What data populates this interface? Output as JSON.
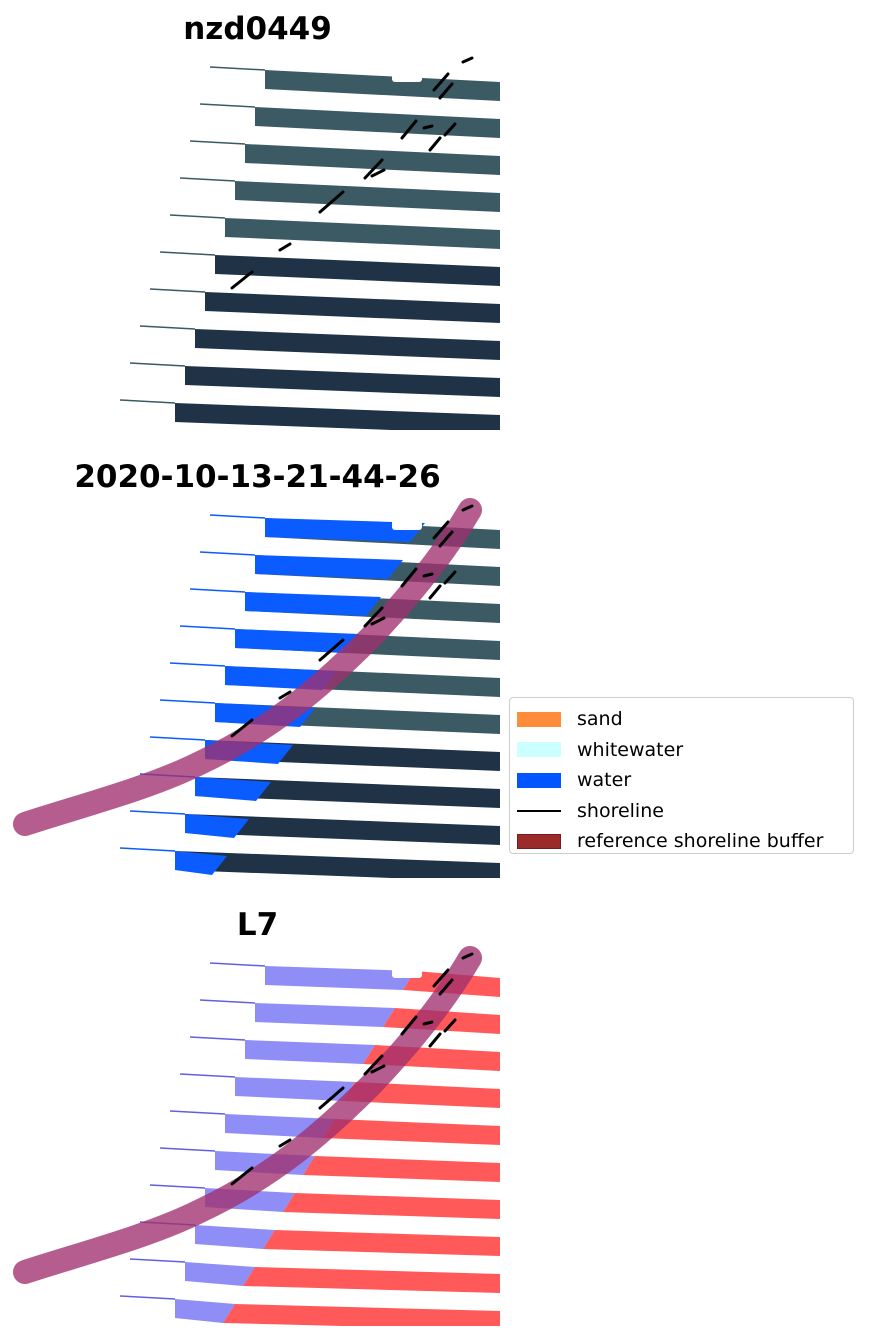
{
  "panels": [
    {
      "title": "nzd0449",
      "style": "rgb"
    },
    {
      "title": "2020-10-13-21-44-26",
      "style": "classified"
    },
    {
      "title": "L7",
      "style": "index"
    }
  ],
  "legend": {
    "items": [
      {
        "label": "sand",
        "color": "#ff8c3a",
        "kind": "patch"
      },
      {
        "label": "whitewater",
        "color": "#ccffff",
        "kind": "patch"
      },
      {
        "label": "water",
        "color": "#0055ff",
        "kind": "patch"
      },
      {
        "label": "shoreline",
        "color": "#000000",
        "kind": "line"
      },
      {
        "label": "reference shoreline buffer",
        "color": "#9b2a2a",
        "kind": "patch",
        "edge": "#7a1a1a"
      }
    ]
  },
  "colors": {
    "land": "#3c5a63",
    "land_dark": "#1f3246",
    "water_class": "#0a5cff",
    "buffer": "#a0306e",
    "index_blue": "#7a7af5",
    "index_red": "#ff3c3c"
  }
}
